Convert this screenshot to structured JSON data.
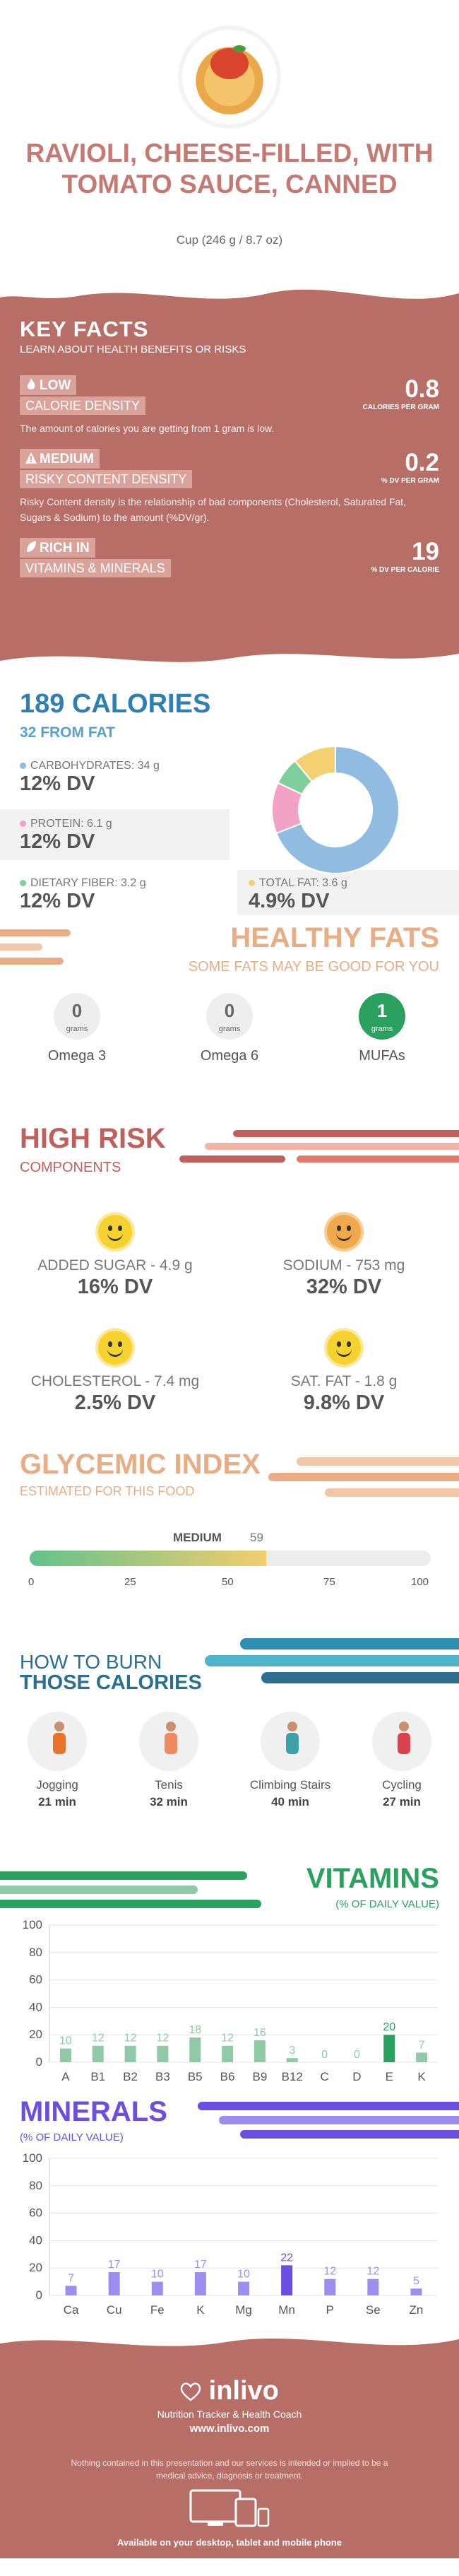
{
  "header": {
    "title": "RAVIOLI, CHEESE-FILLED, WITH TOMATO SAUCE, CANNED",
    "serving": "Cup (246 g / 8.7 oz)"
  },
  "key_facts": {
    "title": "KEY FACTS",
    "subtitle": "LEARN ABOUT HEALTH BENEFITS OR RISKS",
    "items": [
      {
        "level": "LOW",
        "label": "CALORIE DENSITY",
        "value": "0.8",
        "unit": "CALORIES PER GRAM",
        "desc": "The amount of calories you are getting from 1 gram is low."
      },
      {
        "level": "MEDIUM",
        "label": "RISKY CONTENT DENSITY",
        "value": "0.2",
        "unit": "% DV PER GRAM",
        "desc": "Risky Content density is the relationship of bad components (Cholesterol, Saturated Fat, Sugars & Sodium) to the amount (%DV/gr)."
      },
      {
        "level": "RICH  IN",
        "label": "VITAMINS & MINERALS",
        "value": "19",
        "unit": "% DV PER CALORIE",
        "desc": ""
      }
    ]
  },
  "calories": {
    "title": "189 CALORIES",
    "subtitle": "32 FROM FAT",
    "macros": [
      {
        "label": "CARBOHYDRATES: 34 g",
        "dv": "12% DV",
        "color": "#8fbce0"
      },
      {
        "label": "PROTEIN: 6.1 g",
        "dv": "12% DV",
        "color": "#f1a2c5"
      },
      {
        "label": "DIETARY FIBER: 3.2 g",
        "dv": "12% DV",
        "color": "#7fcf9c"
      },
      {
        "label": "TOTAL FAT: 3.6 g",
        "dv": "4.9% DV",
        "color": "#f5d071"
      }
    ],
    "donut": [
      {
        "name": "carbohydrates",
        "value": 69,
        "color": "#8fbce0"
      },
      {
        "name": "protein",
        "value": 13,
        "color": "#f1a2c5"
      },
      {
        "name": "fiber",
        "value": 7,
        "color": "#7fcf9c"
      },
      {
        "name": "fat",
        "value": 11,
        "color": "#f5d071"
      }
    ]
  },
  "healthy_fats": {
    "title": "HEALTHY FATS",
    "subtitle": "SOME FATS MAY BE GOOD FOR YOU",
    "unit": "grams",
    "items": [
      {
        "value": "0",
        "label": "Omega 3"
      },
      {
        "value": "0",
        "label": "Omega 6"
      },
      {
        "value": "1",
        "label": "MUFAs"
      }
    ]
  },
  "high_risk": {
    "title": "HIGH RISK",
    "subtitle": "COMPONENTS",
    "items": [
      {
        "label": "ADDED SUGAR - 4.9 g",
        "dv": "16% DV"
      },
      {
        "label": "SODIUM - 753 mg",
        "dv": "32% DV"
      },
      {
        "label": "CHOLESTEROL - 7.4 mg",
        "dv": "2.5% DV"
      },
      {
        "label": "SAT. FAT - 1.8 g",
        "dv": "9.8% DV"
      }
    ]
  },
  "glycemic": {
    "title": "GLYCEMIC INDEX",
    "subtitle": "ESTIMATED FOR THIS FOOD",
    "level": "MEDIUM",
    "value_label": "59",
    "value": 59,
    "scale_max": 100,
    "ticks": [
      "0",
      "25",
      "50",
      "75",
      "100"
    ]
  },
  "burn": {
    "title_1": "HOW TO BURN",
    "title_2": "THOSE CALORIES",
    "items": [
      {
        "name": "Jogging",
        "time": "21 min"
      },
      {
        "name": "Tenis",
        "time": "32 min"
      },
      {
        "name": "Climbing Stairs",
        "time": "40 min"
      },
      {
        "name": "Cycling",
        "time": "27 min"
      }
    ]
  },
  "vitamins": {
    "title": "VITAMINS",
    "subtitle": "(% OF DAILY VALUE)"
  },
  "minerals": {
    "title": "MINERALS",
    "subtitle": "(% OF DAILY VALUE)"
  },
  "chart_data": [
    {
      "type": "bar",
      "title": "VITAMINS",
      "subtitle": "(% OF DAILY VALUE)",
      "categories": [
        "A",
        "B1",
        "B2",
        "B3",
        "B5",
        "B6",
        "B9",
        "B12",
        "C",
        "D",
        "E",
        "K"
      ],
      "values": [
        10,
        12,
        12,
        12,
        18,
        12,
        16,
        3,
        0,
        0,
        20,
        7
      ],
      "ylim": [
        0,
        100
      ],
      "yticks": [
        "0",
        "20",
        "40",
        "60",
        "80",
        "100"
      ],
      "color": "#8fc9a6",
      "highlight_color": "#2aa15f"
    },
    {
      "type": "bar",
      "title": "MINERALS",
      "subtitle": "(% OF DAILY VALUE)",
      "categories": [
        "Ca",
        "Cu",
        "Fe",
        "K",
        "Mg",
        "Mn",
        "P",
        "Se",
        "Zn"
      ],
      "values": [
        7,
        17,
        10,
        17,
        10,
        22,
        12,
        12,
        5
      ],
      "ylim": [
        0,
        100
      ],
      "yticks": [
        "0",
        "20",
        "40",
        "60",
        "80",
        "100"
      ],
      "color": "#9c8ef0",
      "highlight_color": "#6a4fe0"
    }
  ],
  "footer": {
    "logo": "inlivo",
    "tagline": "Nutrition Tracker & Health Coach",
    "url": "www.inlivo.com",
    "disclaimer": "Nothing contained in this presentation and our services is intended or implied to be a medical advice, diagnosis or treatment.",
    "available": "Available on your desktop, tablet and mobile phone"
  }
}
